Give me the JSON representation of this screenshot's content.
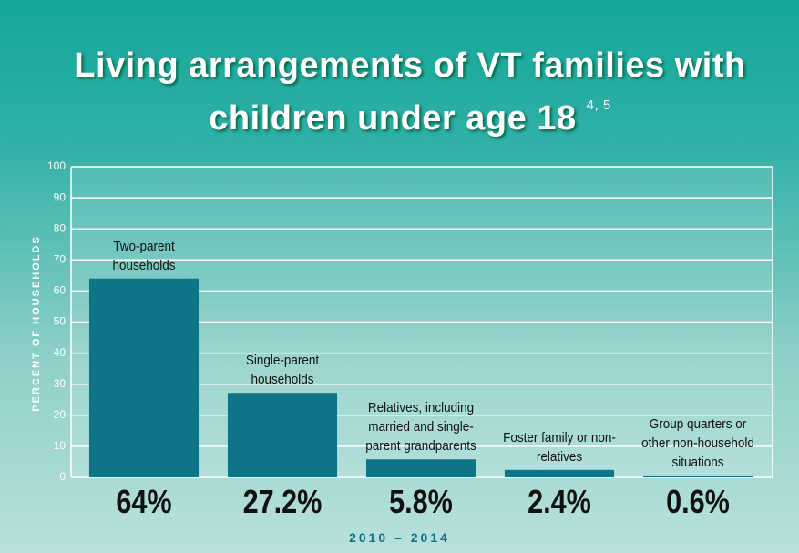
{
  "chart_data": {
    "type": "bar",
    "title": "Living arrangements of VT families with children under age 18",
    "title_note": "4, 5",
    "y_label": "PERCENT OF HOUSEHOLDS",
    "x_label": "2010 – 2014",
    "categories": [
      "Two-parent households",
      "Single-parent households",
      "Relatives, including married and single-parent grandparents",
      "Foster family or non-relatives",
      "Group quarters or other non-household situations"
    ],
    "values": [
      64,
      27.2,
      5.8,
      2.4,
      0.6
    ],
    "value_labels": [
      "64%",
      "27.2%",
      "5.8%",
      "2.4%",
      "0.6%"
    ],
    "color": "#0e7488",
    "ylim": [
      0,
      100
    ],
    "yticks": [
      0,
      10,
      20,
      30,
      40,
      50,
      60,
      70,
      80,
      90,
      100
    ],
    "grid": true
  }
}
